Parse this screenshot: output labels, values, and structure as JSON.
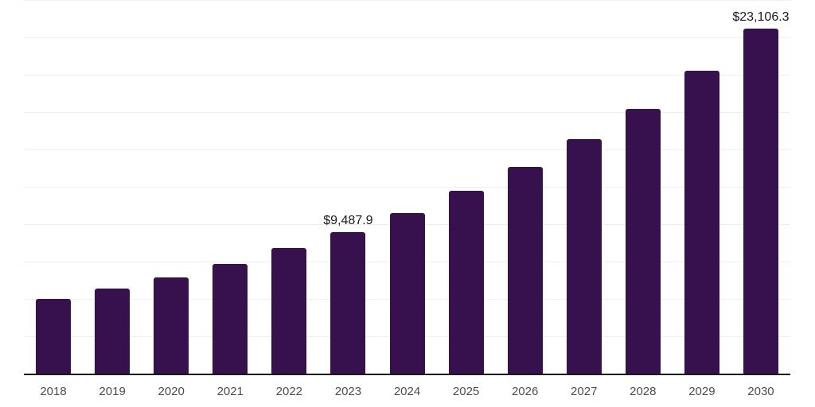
{
  "chart_data": {
    "type": "bar",
    "title": "",
    "xlabel": "",
    "ylabel": "",
    "categories": [
      "2018",
      "2019",
      "2020",
      "2021",
      "2022",
      "2023",
      "2024",
      "2025",
      "2026",
      "2027",
      "2028",
      "2029",
      "2030"
    ],
    "values": [
      5000,
      5700,
      6420,
      7340,
      8420,
      9487.9,
      10760,
      12250,
      13850,
      15700,
      17700,
      20250,
      23106.3
    ],
    "labels": [
      "",
      "",
      "",
      "",
      "",
      "$9,487.9",
      "",
      "",
      "",
      "",
      "",
      "",
      "$23,106.3"
    ],
    "ylim": [
      0,
      25000
    ],
    "grid_step": 2500,
    "grid": true,
    "legend_position": "none"
  },
  "colors": {
    "bar": "#37114d",
    "axis": "#1a1a1a",
    "gridline": "#efefef",
    "tick_label": "#4d4d4d",
    "data_label": "#1a1a1a",
    "background": "#ffffff"
  }
}
